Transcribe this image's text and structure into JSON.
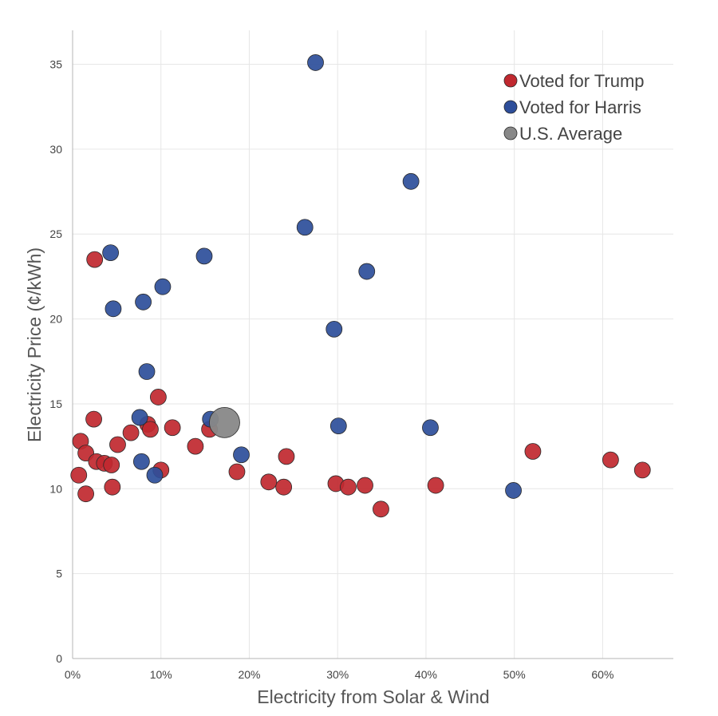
{
  "chart_data": {
    "type": "scatter",
    "xlabel": "Electricity from Solar & Wind",
    "ylabel": "Electricity Price (¢/kWh)",
    "xlim": [
      0,
      0.68
    ],
    "ylim": [
      0,
      37
    ],
    "x_ticks": [
      {
        "value": 0.0,
        "label": "0%"
      },
      {
        "value": 0.1,
        "label": "10%"
      },
      {
        "value": 0.2,
        "label": "20%"
      },
      {
        "value": 0.3,
        "label": "30%"
      },
      {
        "value": 0.4,
        "label": "40%"
      },
      {
        "value": 0.5,
        "label": "50%"
      },
      {
        "value": 0.6,
        "label": "60%"
      }
    ],
    "y_ticks": [
      {
        "value": 0,
        "label": "0"
      },
      {
        "value": 5,
        "label": "5"
      },
      {
        "value": 10,
        "label": "10"
      },
      {
        "value": 15,
        "label": "15"
      },
      {
        "value": 20,
        "label": "20"
      },
      {
        "value": 25,
        "label": "25"
      },
      {
        "value": 30,
        "label": "30"
      },
      {
        "value": 35,
        "label": "35"
      }
    ],
    "grid": true,
    "legend_position": "top-right",
    "series": [
      {
        "name": "Voted for Trump",
        "color": "#c0282f",
        "points": [
          {
            "x": 0.025,
            "y": 23.5
          },
          {
            "x": 0.097,
            "y": 15.4
          },
          {
            "x": 0.024,
            "y": 14.1
          },
          {
            "x": 0.085,
            "y": 13.8
          },
          {
            "x": 0.088,
            "y": 13.5
          },
          {
            "x": 0.113,
            "y": 13.6
          },
          {
            "x": 0.155,
            "y": 13.5
          },
          {
            "x": 0.066,
            "y": 13.3
          },
          {
            "x": 0.009,
            "y": 12.8
          },
          {
            "x": 0.051,
            "y": 12.6
          },
          {
            "x": 0.139,
            "y": 12.5
          },
          {
            "x": 0.015,
            "y": 12.1
          },
          {
            "x": 0.027,
            "y": 11.6
          },
          {
            "x": 0.036,
            "y": 11.5
          },
          {
            "x": 0.044,
            "y": 11.4
          },
          {
            "x": 0.1,
            "y": 11.1
          },
          {
            "x": 0.007,
            "y": 10.8
          },
          {
            "x": 0.045,
            "y": 10.1
          },
          {
            "x": 0.015,
            "y": 9.7
          },
          {
            "x": 0.186,
            "y": 11.0
          },
          {
            "x": 0.222,
            "y": 10.4
          },
          {
            "x": 0.239,
            "y": 10.1
          },
          {
            "x": 0.242,
            "y": 11.9
          },
          {
            "x": 0.298,
            "y": 10.3
          },
          {
            "x": 0.312,
            "y": 10.1
          },
          {
            "x": 0.331,
            "y": 10.2
          },
          {
            "x": 0.349,
            "y": 8.8
          },
          {
            "x": 0.411,
            "y": 10.2
          },
          {
            "x": 0.521,
            "y": 12.2
          },
          {
            "x": 0.609,
            "y": 11.7
          },
          {
            "x": 0.645,
            "y": 11.1
          }
        ]
      },
      {
        "name": "Voted for Harris",
        "color": "#2d4e9a",
        "points": [
          {
            "x": 0.275,
            "y": 35.1
          },
          {
            "x": 0.383,
            "y": 28.1
          },
          {
            "x": 0.263,
            "y": 25.4
          },
          {
            "x": 0.043,
            "y": 23.9
          },
          {
            "x": 0.149,
            "y": 23.7
          },
          {
            "x": 0.333,
            "y": 22.8
          },
          {
            "x": 0.102,
            "y": 21.9
          },
          {
            "x": 0.046,
            "y": 20.6
          },
          {
            "x": 0.08,
            "y": 21.0
          },
          {
            "x": 0.296,
            "y": 19.4
          },
          {
            "x": 0.084,
            "y": 16.9
          },
          {
            "x": 0.076,
            "y": 14.2
          },
          {
            "x": 0.156,
            "y": 14.1
          },
          {
            "x": 0.301,
            "y": 13.7
          },
          {
            "x": 0.405,
            "y": 13.6
          },
          {
            "x": 0.191,
            "y": 12.0
          },
          {
            "x": 0.078,
            "y": 11.6
          },
          {
            "x": 0.093,
            "y": 10.8
          },
          {
            "x": 0.499,
            "y": 9.9
          }
        ]
      },
      {
        "name": "U.S. Average",
        "color": "#888888",
        "points": [
          {
            "x": 0.172,
            "y": 13.9
          }
        ]
      }
    ]
  }
}
